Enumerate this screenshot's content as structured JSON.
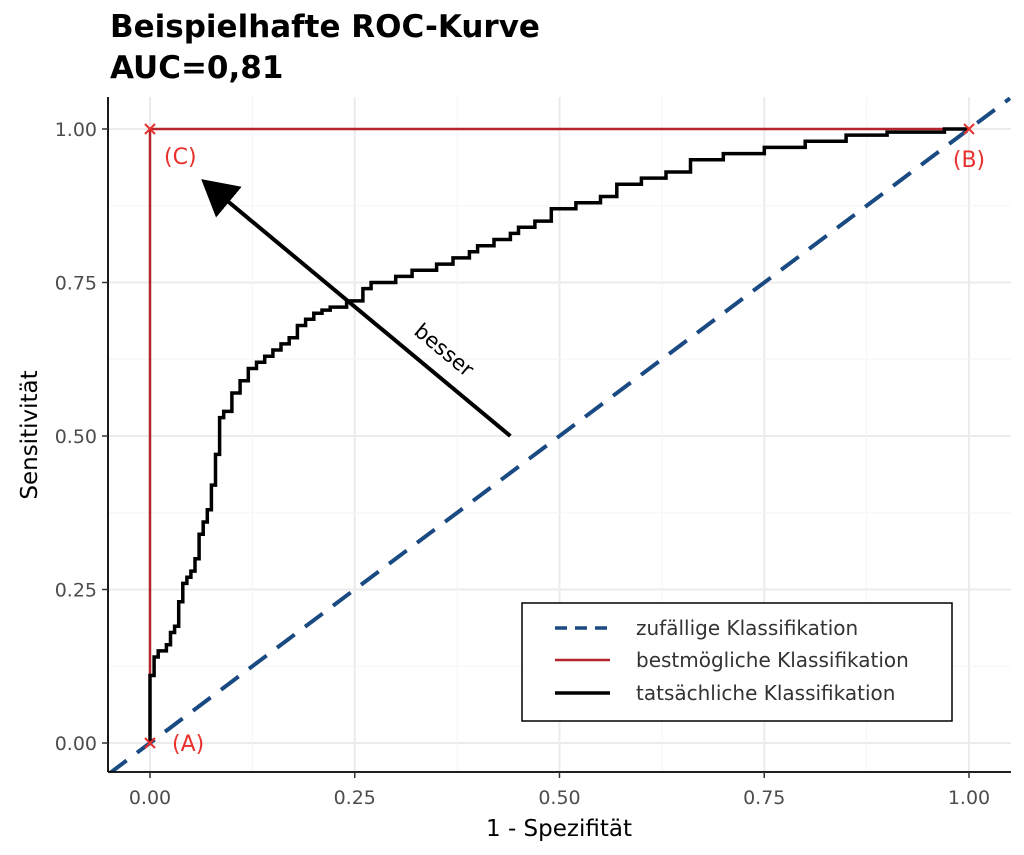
{
  "chart_data": {
    "type": "line",
    "title_lines": [
      "Beispielhafte ROC-Kurve",
      "AUC=0,81"
    ],
    "xlabel": "1 - Spezifität",
    "ylabel": "Sensitivität",
    "xlim": [
      -0.05,
      1.05
    ],
    "ylim": [
      -0.05,
      1.05
    ],
    "x_ticks": [
      "0.00",
      "0.25",
      "0.50",
      "0.75",
      "1.00"
    ],
    "y_ticks": [
      "0.00",
      "0.25",
      "0.50",
      "0.75",
      "1.00"
    ],
    "grid": true,
    "legend_position": "bottom-right",
    "series": [
      {
        "name": "zufällige Klassifikation",
        "style": "dashed",
        "color": "#1a4a82",
        "x": [
          -0.05,
          1.05
        ],
        "y": [
          -0.05,
          1.05
        ]
      },
      {
        "name": "bestmögliche Klassifikation",
        "style": "solid",
        "color": "#b5242c",
        "x": [
          0,
          0,
          1
        ],
        "y": [
          0,
          1,
          1
        ]
      },
      {
        "name": "tatsächliche Klassifikation",
        "style": "solid",
        "color": "#000000",
        "x": [
          0,
          0,
          0.005,
          0.005,
          0.01,
          0.01,
          0.02,
          0.02,
          0.025,
          0.025,
          0.03,
          0.03,
          0.035,
          0.035,
          0.04,
          0.04,
          0.045,
          0.045,
          0.05,
          0.05,
          0.055,
          0.055,
          0.06,
          0.06,
          0.065,
          0.065,
          0.07,
          0.07,
          0.075,
          0.075,
          0.08,
          0.08,
          0.085,
          0.085,
          0.09,
          0.09,
          0.1,
          0.1,
          0.11,
          0.11,
          0.12,
          0.12,
          0.13,
          0.13,
          0.14,
          0.14,
          0.15,
          0.15,
          0.16,
          0.16,
          0.17,
          0.17,
          0.18,
          0.18,
          0.19,
          0.19,
          0.2,
          0.2,
          0.21,
          0.21,
          0.22,
          0.22,
          0.24,
          0.24,
          0.26,
          0.26,
          0.27,
          0.27,
          0.3,
          0.3,
          0.32,
          0.32,
          0.35,
          0.35,
          0.37,
          0.37,
          0.39,
          0.39,
          0.4,
          0.4,
          0.42,
          0.42,
          0.44,
          0.44,
          0.45,
          0.45,
          0.47,
          0.47,
          0.49,
          0.49,
          0.52,
          0.52,
          0.55,
          0.55,
          0.57,
          0.57,
          0.6,
          0.6,
          0.63,
          0.63,
          0.66,
          0.66,
          0.7,
          0.7,
          0.75,
          0.75,
          0.8,
          0.8,
          0.85,
          0.85,
          0.9,
          0.9,
          0.97,
          0.97,
          1
        ],
        "y": [
          0,
          0.11,
          0.11,
          0.14,
          0.14,
          0.15,
          0.15,
          0.16,
          0.16,
          0.18,
          0.18,
          0.19,
          0.19,
          0.23,
          0.23,
          0.26,
          0.26,
          0.27,
          0.27,
          0.28,
          0.28,
          0.3,
          0.3,
          0.34,
          0.34,
          0.36,
          0.36,
          0.38,
          0.38,
          0.42,
          0.42,
          0.47,
          0.47,
          0.53,
          0.53,
          0.54,
          0.54,
          0.57,
          0.57,
          0.59,
          0.59,
          0.61,
          0.61,
          0.62,
          0.62,
          0.63,
          0.63,
          0.64,
          0.64,
          0.65,
          0.65,
          0.66,
          0.66,
          0.68,
          0.68,
          0.69,
          0.69,
          0.7,
          0.7,
          0.705,
          0.705,
          0.71,
          0.71,
          0.72,
          0.72,
          0.74,
          0.74,
          0.75,
          0.75,
          0.76,
          0.76,
          0.77,
          0.77,
          0.78,
          0.78,
          0.79,
          0.79,
          0.8,
          0.8,
          0.81,
          0.81,
          0.82,
          0.82,
          0.83,
          0.83,
          0.84,
          0.84,
          0.85,
          0.85,
          0.87,
          0.87,
          0.88,
          0.88,
          0.89,
          0.89,
          0.91,
          0.91,
          0.92,
          0.92,
          0.93,
          0.93,
          0.95,
          0.95,
          0.96,
          0.96,
          0.97,
          0.97,
          0.98,
          0.98,
          0.99,
          0.99,
          0.995,
          0.995,
          1,
          1
        ]
      }
    ],
    "points": [
      {
        "label": "(A)",
        "x": 0,
        "y": 0,
        "label_side": "right"
      },
      {
        "label": "(B)",
        "x": 1,
        "y": 1,
        "label_side": "below"
      },
      {
        "label": "(C)",
        "x": 0,
        "y": 1,
        "label_side": "below-right"
      }
    ],
    "annotation": {
      "text": "besser",
      "arrow_from": [
        0.44,
        0.5
      ],
      "arrow_to": [
        0.07,
        0.91
      ]
    }
  },
  "colors": {
    "random": "#1a4a82",
    "best": "#b5242c",
    "actual": "#000000",
    "point_marker": "#e8302c",
    "grid": "#ebebeb"
  }
}
